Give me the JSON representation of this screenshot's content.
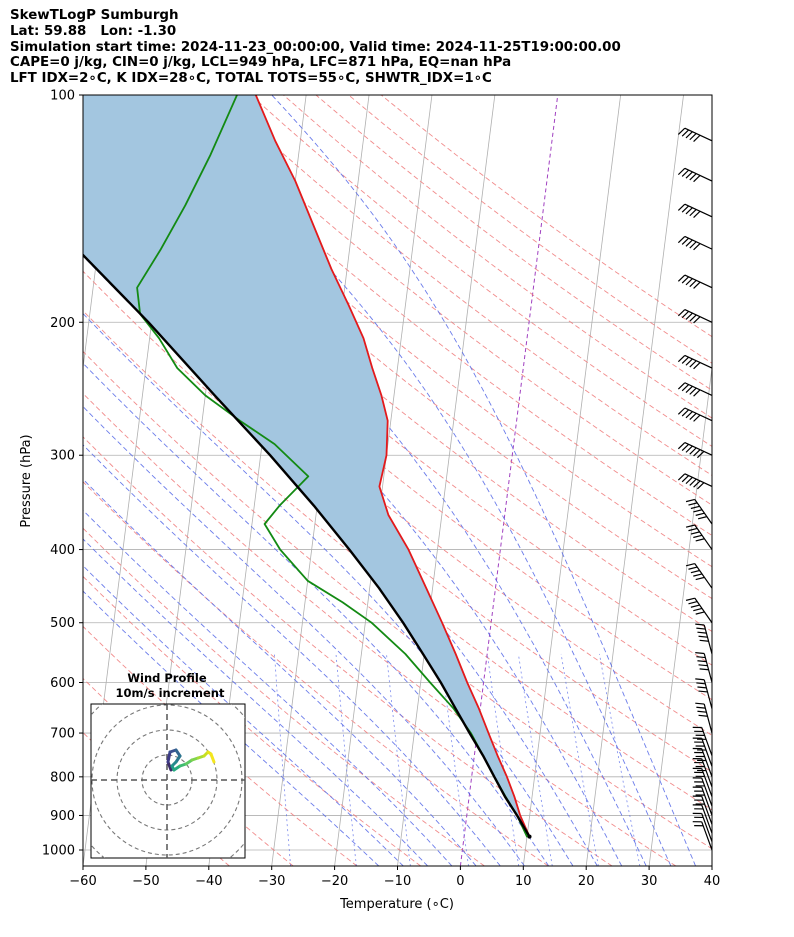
{
  "header": {
    "line1": "SkewTLogP Sumburgh",
    "line2": "Lat: 59.88   Lon: -1.30",
    "line3": "Simulation start time: 2024-11-23_00:00:00, Valid time: 2024-11-25T19:00:00.00",
    "line4": "CAPE=0 j/kg, CIN=0 j/kg, LCL=949 hPa, LFC=871 hPa, EQ=nan hPa",
    "line5": "LFT IDX=2∘C, K IDX=28∘C, TOTAL TOTS=55∘C, SHWTR_IDX=1∘C"
  },
  "chart_data": {
    "type": "line",
    "xlabel": "Temperature (∘C)",
    "ylabel": "Pressure (hPa)",
    "xlim": [
      -60,
      40
    ],
    "ylim": [
      1050,
      100
    ],
    "y_scale": "log",
    "x_ticks": [
      -60,
      -50,
      -40,
      -30,
      -20,
      -10,
      0,
      10,
      20,
      30,
      40
    ],
    "x_tick_labels": [
      "−60",
      "−50",
      "−40",
      "−30",
      "−20",
      "−10",
      "0",
      "10",
      "20",
      "30",
      "40"
    ],
    "y_ticks": [
      1000,
      900,
      800,
      700,
      600,
      500,
      400,
      300,
      200,
      100
    ],
    "y_tick_labels": [
      "1000",
      "900",
      "800",
      "700",
      "600",
      "500",
      "400",
      "300",
      "200",
      "100"
    ],
    "grid": true,
    "colors": {
      "temperature": "#e31a1c",
      "dewpoint": "#138a13",
      "parcel": "#000000",
      "fill": "#a3c6e0",
      "dry_adiabat": "#f08080",
      "moist_adiabat": "#5b6ee8",
      "mixing_ratio": "#5b6ee8",
      "isotherm": "#b0b0b0",
      "zero_isotherm": "#a040c0"
    },
    "series": [
      {
        "key": "temperature",
        "pressure": [
          960,
          900,
          850,
          800,
          750,
          700,
          650,
          600,
          550,
          500,
          450,
          400,
          360,
          330,
          300,
          270,
          250,
          230,
          210,
          190,
          170,
          150,
          130,
          115,
          100
        ],
        "values": [
          10.4,
          8.5,
          7.2,
          5.6,
          3.7,
          1.8,
          -0.2,
          -2.6,
          -5.0,
          -7.8,
          -11.0,
          -14.6,
          -18.5,
          -20.5,
          -20.0,
          -20.5,
          -22.0,
          -24.0,
          -26.0,
          -29.0,
          -32.5,
          -36.0,
          -40.0,
          -44.0,
          -48.0
        ]
      },
      {
        "key": "dewpoint",
        "pressure": [
          960,
          900,
          850,
          800,
          750,
          700,
          650,
          600,
          550,
          500,
          470,
          440,
          400,
          370,
          350,
          320,
          290,
          270,
          250,
          230,
          210,
          195,
          180,
          160,
          140,
          120,
          100
        ],
        "values": [
          10.0,
          8.0,
          5.8,
          3.6,
          1.4,
          -1.0,
          -4.2,
          -8.5,
          -13.0,
          -19.0,
          -24.0,
          -30.0,
          -35.0,
          -38.0,
          -36.0,
          -32.0,
          -38.0,
          -44.0,
          -50.0,
          -55.0,
          -58.5,
          -62.0,
          -63.0,
          -60.0,
          -57.0,
          -54.0,
          -51.0
        ]
      },
      {
        "key": "parcel",
        "pressure": [
          960,
          900,
          850,
          800,
          750,
          700,
          650,
          600,
          550,
          500,
          450,
          400,
          350,
          300,
          250,
          200,
          150,
          100
        ],
        "values": [
          10.4,
          8.0,
          5.7,
          3.6,
          1.4,
          -1.2,
          -3.9,
          -6.8,
          -10.2,
          -14.0,
          -18.5,
          -24.0,
          -30.5,
          -38.5,
          -48.5,
          -60.5,
          -77.0,
          -99.0
        ]
      }
    ],
    "wind_barbs": {
      "pressure": [
        1000,
        975,
        950,
        925,
        900,
        875,
        850,
        825,
        800,
        775,
        750,
        700,
        650,
        600,
        550,
        500,
        450,
        400,
        370,
        330,
        300,
        270,
        250,
        230,
        200,
        180,
        160,
        145,
        130,
        115
      ],
      "speed_kt": [
        20,
        25,
        25,
        30,
        30,
        35,
        35,
        40,
        40,
        40,
        45,
        45,
        45,
        50,
        50,
        55,
        55,
        55,
        60,
        60,
        60,
        55,
        55,
        50,
        50,
        50,
        50,
        50,
        50,
        55
      ]
    }
  },
  "inset": {
    "title": "Wind Profile",
    "subtitle": "10m/s increment"
  }
}
